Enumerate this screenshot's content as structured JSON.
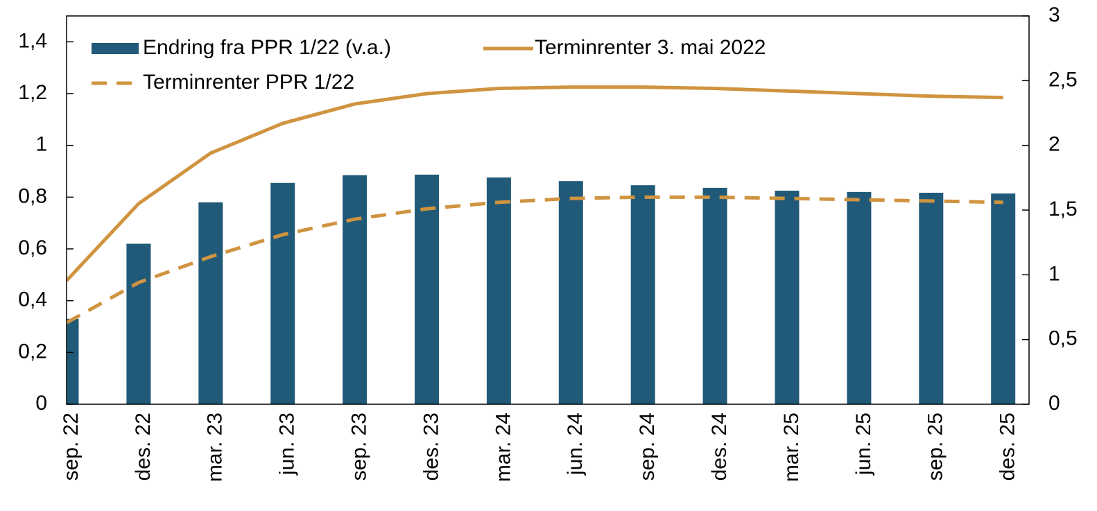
{
  "chart_data": {
    "type": "bar",
    "categories": [
      "sep. 22",
      "des. 22",
      "mar. 23",
      "jun. 23",
      "sep. 23",
      "des. 23",
      "mar. 24",
      "jun. 24",
      "sep. 24",
      "des. 24",
      "mar. 25",
      "jun. 25",
      "sep. 25",
      "des. 25"
    ],
    "series": [
      {
        "name": "Endring fra PPR 1/22 (v.a.)",
        "type": "bar",
        "color": "#215a78",
        "values": [
          0.33,
          0.62,
          0.78,
          0.855,
          0.885,
          0.887,
          0.876,
          0.862,
          0.846,
          0.836,
          0.825,
          0.82,
          0.817,
          0.814
        ]
      },
      {
        "name": "Terminrenter 3. mai 2022",
        "type": "line",
        "axis": "y2",
        "color": "#d09440",
        "dashed": false,
        "values": [
          0.955,
          1.55,
          1.94,
          2.17,
          2.32,
          2.4,
          2.44,
          2.45,
          2.45,
          2.44,
          2.42,
          2.4,
          2.38,
          2.37
        ]
      },
      {
        "name": "Terminrenter PPR 1/22",
        "type": "line",
        "axis": "y2",
        "color": "#d09440",
        "dashed": true,
        "values": [
          0.63,
          0.94,
          1.14,
          1.31,
          1.43,
          1.51,
          1.56,
          1.59,
          1.6,
          1.6,
          1.59,
          1.58,
          1.57,
          1.56
        ]
      }
    ],
    "ylim": [
      0,
      1.5
    ],
    "yticks": [
      0,
      {
        "value": 0.2,
        "label": "0,2"
      },
      {
        "value": 0.4,
        "label": "0,4"
      },
      {
        "value": 0.6,
        "label": "0,6"
      },
      {
        "value": 0.8,
        "label": "0,8"
      },
      1,
      {
        "value": 1.2,
        "label": "1,2"
      },
      {
        "value": 1.4,
        "label": "1,4"
      }
    ],
    "y2lim": [
      0,
      3
    ],
    "y2ticks": [
      0,
      {
        "value": 0.5,
        "label": "0,5"
      },
      1,
      {
        "value": 1.5,
        "label": "1,5"
      },
      2,
      {
        "value": 2.5,
        "label": "2,5"
      },
      3
    ],
    "legend": "top-left"
  }
}
